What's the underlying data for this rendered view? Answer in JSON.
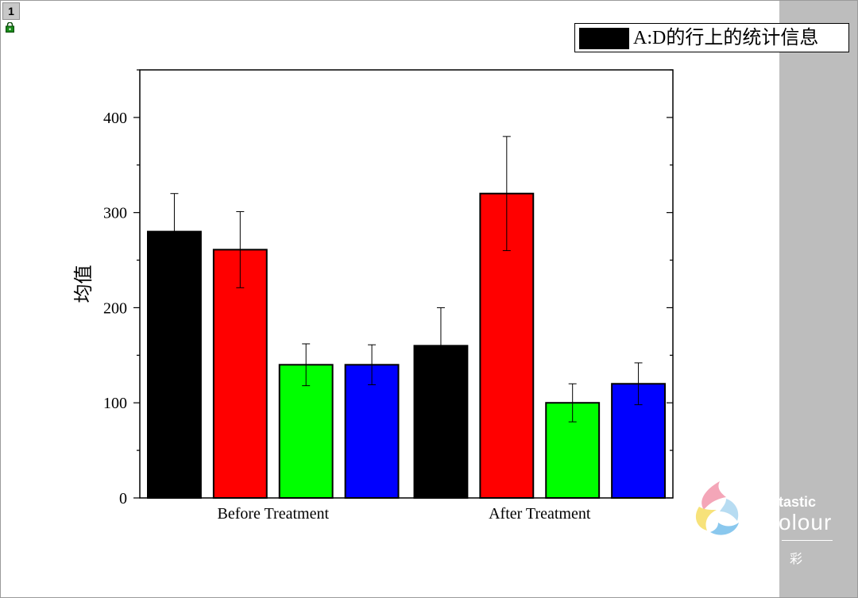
{
  "page": {
    "number": "1"
  },
  "legend": {
    "label": "A:D的行上的统计信息",
    "swatch_color": "#000000"
  },
  "watermark": {
    "line1": "tastic",
    "line2": "olour",
    "line3": "彩"
  },
  "chart_data": {
    "type": "bar",
    "title": "",
    "xlabel": "",
    "ylabel": "均值",
    "ylim": [
      0,
      450
    ],
    "yticks": [
      0,
      100,
      200,
      300,
      400
    ],
    "grid": false,
    "categories": [
      "Before Treatment",
      "After Treatment"
    ],
    "series": [
      {
        "color": "#000000",
        "values": [
          280,
          160
        ],
        "errors": [
          40,
          40
        ]
      },
      {
        "color": "#ff0000",
        "values": [
          261,
          320
        ],
        "errors": [
          40,
          60
        ]
      },
      {
        "color": "#00ff00",
        "values": [
          140,
          100
        ],
        "errors": [
          22,
          20
        ]
      },
      {
        "color": "#0000ff",
        "values": [
          140,
          120
        ],
        "errors": [
          21,
          22
        ]
      }
    ]
  }
}
